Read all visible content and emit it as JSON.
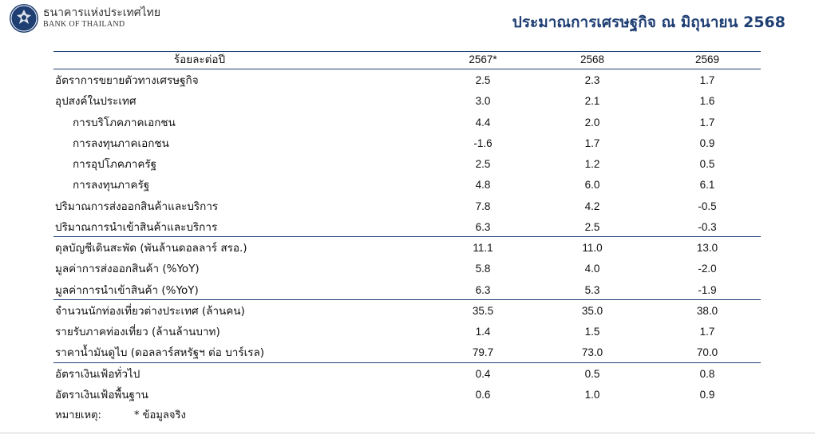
{
  "brand": {
    "name_th": "ธนาคารแห่งประเทศไทย",
    "name_en": "BANK OF THAILAND",
    "color": "#1f3f73"
  },
  "title": "ประมาณการเศรษฐกิจ ณ มิถุนายน 2568",
  "table": {
    "header": [
      "ร้อยละต่อปี",
      "2567*",
      "2568",
      "2569"
    ],
    "rows": [
      {
        "label": "อัตราการขยายตัวทางเศรษฐกิจ",
        "v": [
          "2.5",
          "2.3",
          "1.7"
        ]
      },
      {
        "label": "อุปสงค์ในประเทศ",
        "v": [
          "3.0",
          "2.1",
          "1.6"
        ]
      },
      {
        "label": "การบริโภคภาคเอกชน",
        "v": [
          "4.4",
          "2.0",
          "1.7"
        ]
      },
      {
        "label": "การลงทุนภาคเอกชน",
        "v": [
          "-1.6",
          "1.7",
          "0.9"
        ]
      },
      {
        "label": "การอุปโภคภาครัฐ",
        "v": [
          "2.5",
          "1.2",
          "0.5"
        ]
      },
      {
        "label": "การลงทุนภาครัฐ",
        "v": [
          "4.8",
          "6.0",
          "6.1"
        ]
      },
      {
        "label": "ปริมาณการส่งออกสินค้าและบริการ",
        "v": [
          "7.8",
          "4.2",
          "-0.5"
        ]
      },
      {
        "label": "ปริมาณการนำเข้าสินค้าและบริการ",
        "v": [
          "6.3",
          "2.5",
          "-0.3"
        ]
      },
      {
        "label": "ดุลบัญชีเดินสะพัด (พันล้านดอลลาร์ สรอ.)",
        "v": [
          "11.1",
          "11.0",
          "13.0"
        ]
      },
      {
        "label": "มูลค่าการส่งออกสินค้า (%YoY)",
        "v": [
          "5.8",
          "4.0",
          "-2.0"
        ]
      },
      {
        "label": "มูลค่าการนำเข้าสินค้า (%YoY)",
        "v": [
          "6.3",
          "5.3",
          "-1.9"
        ]
      },
      {
        "label": "จำนวนนักท่องเที่ยวต่างประเทศ (ล้านคน)",
        "v": [
          "35.5",
          "35.0",
          "38.0"
        ]
      },
      {
        "label": "รายรับภาคท่องเที่ยว (ล้านล้านบาท)",
        "v": [
          "1.4",
          "1.5",
          "1.7"
        ]
      },
      {
        "label": "ราคาน้ำมันดูไบ (ดอลลาร์สหรัฐฯ ต่อ บาร์เรล)",
        "v": [
          "79.7",
          "73.0",
          "70.0"
        ]
      },
      {
        "label": "อัตราเงินเฟ้อทั่วไป",
        "v": [
          "0.4",
          "0.5",
          "0.8"
        ]
      },
      {
        "label": "อัตราเงินเฟ้อพื้นฐาน",
        "v": [
          "0.6",
          "1.0",
          "0.9"
        ]
      }
    ]
  },
  "note": {
    "label": "หมายเหตุ:",
    "text": "* ข้อมูลจริง"
  }
}
